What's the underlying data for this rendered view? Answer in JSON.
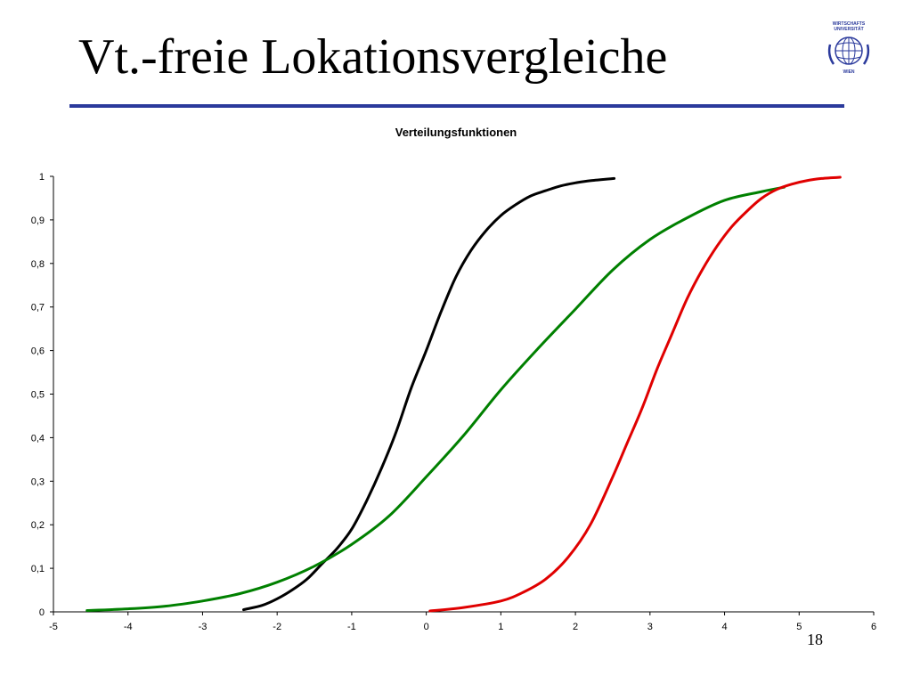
{
  "slide": {
    "title": "Vt.-freie Lokationsvergleiche",
    "page_number": "18",
    "rule_color": "#2b3a9c"
  },
  "logo": {
    "icon": "university-globe-logo",
    "text_top": "WIRTSCHAFTS UNIVERSITÄT",
    "text_bottom": "WIEN",
    "color": "#2b3a9c"
  },
  "chart_data": {
    "type": "line",
    "title": "Verteilungsfunktionen",
    "xlabel": "",
    "ylabel": "",
    "xlim": [
      -5,
      6
    ],
    "ylim": [
      0,
      1
    ],
    "xticks": [
      "-5",
      "-4",
      "-3",
      "-2",
      "-1",
      "0",
      "1",
      "2",
      "3",
      "4",
      "5",
      "6"
    ],
    "yticks": [
      "0",
      "0,1",
      "0,2",
      "0,3",
      "0,4",
      "0,5",
      "0,6",
      "0,7",
      "0,8",
      "0,9",
      "1"
    ],
    "grid": false,
    "legend": "none",
    "series": [
      {
        "color": "#000000",
        "points": [
          [
            -2.45,
            0.005
          ],
          [
            -2.2,
            0.015
          ],
          [
            -2.0,
            0.03
          ],
          [
            -1.8,
            0.05
          ],
          [
            -1.6,
            0.075
          ],
          [
            -1.4,
            0.11
          ],
          [
            -1.2,
            0.145
          ],
          [
            -1.0,
            0.19
          ],
          [
            -0.8,
            0.255
          ],
          [
            -0.6,
            0.33
          ],
          [
            -0.4,
            0.415
          ],
          [
            -0.2,
            0.515
          ],
          [
            0.0,
            0.6
          ],
          [
            0.2,
            0.69
          ],
          [
            0.4,
            0.77
          ],
          [
            0.6,
            0.83
          ],
          [
            0.8,
            0.875
          ],
          [
            1.0,
            0.91
          ],
          [
            1.2,
            0.935
          ],
          [
            1.4,
            0.955
          ],
          [
            1.6,
            0.967
          ],
          [
            1.8,
            0.978
          ],
          [
            2.0,
            0.985
          ],
          [
            2.2,
            0.99
          ],
          [
            2.52,
            0.995
          ]
        ]
      },
      {
        "color": "#008000",
        "points": [
          [
            -4.55,
            0.003
          ],
          [
            -4.0,
            0.007
          ],
          [
            -3.5,
            0.013
          ],
          [
            -3.0,
            0.025
          ],
          [
            -2.5,
            0.042
          ],
          [
            -2.0,
            0.068
          ],
          [
            -1.5,
            0.105
          ],
          [
            -1.0,
            0.155
          ],
          [
            -0.5,
            0.22
          ],
          [
            0.0,
            0.31
          ],
          [
            0.5,
            0.405
          ],
          [
            1.0,
            0.51
          ],
          [
            1.5,
            0.605
          ],
          [
            2.0,
            0.695
          ],
          [
            2.5,
            0.785
          ],
          [
            3.0,
            0.855
          ],
          [
            3.5,
            0.905
          ],
          [
            4.0,
            0.945
          ],
          [
            4.5,
            0.965
          ],
          [
            4.8,
            0.975
          ]
        ]
      },
      {
        "color": "#e00000",
        "points": [
          [
            0.05,
            0.002
          ],
          [
            0.5,
            0.01
          ],
          [
            1.0,
            0.025
          ],
          [
            1.3,
            0.045
          ],
          [
            1.6,
            0.075
          ],
          [
            1.9,
            0.125
          ],
          [
            2.2,
            0.2
          ],
          [
            2.5,
            0.31
          ],
          [
            2.7,
            0.39
          ],
          [
            2.9,
            0.47
          ],
          [
            3.1,
            0.56
          ],
          [
            3.3,
            0.64
          ],
          [
            3.5,
            0.72
          ],
          [
            3.7,
            0.785
          ],
          [
            3.9,
            0.84
          ],
          [
            4.1,
            0.885
          ],
          [
            4.3,
            0.92
          ],
          [
            4.5,
            0.95
          ],
          [
            4.7,
            0.97
          ],
          [
            4.9,
            0.982
          ],
          [
            5.1,
            0.99
          ],
          [
            5.3,
            0.995
          ],
          [
            5.55,
            0.998
          ]
        ]
      }
    ]
  }
}
